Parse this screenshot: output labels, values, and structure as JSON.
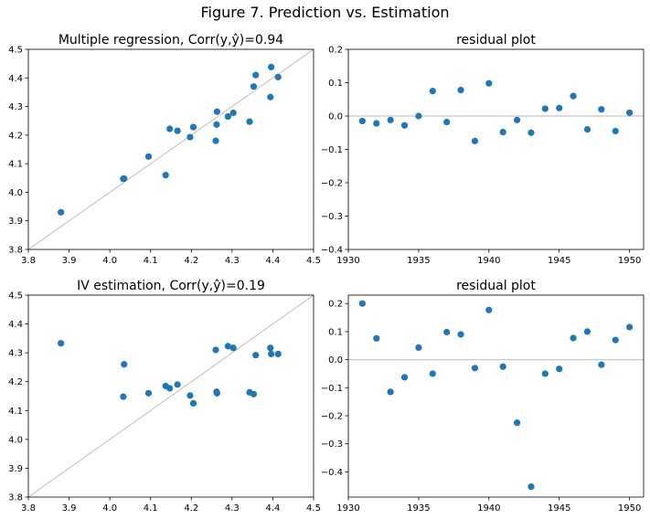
{
  "figure_title": "Figure 7. Prediction vs. Estimation",
  "chart_data": [
    {
      "type": "scatter",
      "title": "Multiple regression, Corr(y,ŷ)=0.94",
      "xlabel": "",
      "ylabel": "",
      "xlim": [
        3.8,
        4.5
      ],
      "ylim": [
        3.8,
        4.5
      ],
      "xticks": [
        "3.8",
        "3.9",
        "4.0",
        "4.1",
        "4.2",
        "4.3",
        "4.4",
        "4.5"
      ],
      "yticks": [
        "3.8",
        "3.9",
        "4.0",
        "4.1",
        "4.2",
        "4.3",
        "4.4",
        "4.5"
      ],
      "reference_line": "diagonal",
      "marker_color": "#1f77b4",
      "reference_color": "#b0b0b0",
      "points": [
        [
          3.88,
          3.93
        ],
        [
          4.033,
          4.047
        ],
        [
          4.035,
          4.048
        ],
        [
          4.095,
          4.125
        ],
        [
          4.137,
          4.06
        ],
        [
          4.147,
          4.222
        ],
        [
          4.166,
          4.215
        ],
        [
          4.197,
          4.193
        ],
        [
          4.205,
          4.228
        ],
        [
          4.26,
          4.18
        ],
        [
          4.262,
          4.237
        ],
        [
          4.263,
          4.282
        ],
        [
          4.29,
          4.265
        ],
        [
          4.303,
          4.278
        ],
        [
          4.343,
          4.247
        ],
        [
          4.353,
          4.37
        ],
        [
          4.358,
          4.41
        ],
        [
          4.394,
          4.333
        ],
        [
          4.396,
          4.438
        ],
        [
          4.413,
          4.403
        ]
      ]
    },
    {
      "type": "scatter",
      "title": "residual plot",
      "xlabel": "",
      "ylabel": "",
      "xlim": [
        1930,
        1951
      ],
      "ylim": [
        -0.4,
        0.2
      ],
      "xticks": [
        "1930",
        "1935",
        "1940",
        "1945",
        "1950"
      ],
      "yticks": [
        "0.2",
        "0.1",
        "0.0",
        "−0.1",
        "−0.2",
        "−0.3",
        "−0.4"
      ],
      "reference_line": "zero",
      "marker_color": "#1f77b4",
      "reference_color": "#c8c8c8",
      "points": [
        [
          1931,
          -0.015
        ],
        [
          1932,
          -0.022
        ],
        [
          1933,
          -0.012
        ],
        [
          1934,
          -0.028
        ],
        [
          1935,
          0.0
        ],
        [
          1936,
          0.075
        ],
        [
          1937,
          -0.018
        ],
        [
          1938,
          0.078
        ],
        [
          1939,
          -0.075
        ],
        [
          1940,
          0.098
        ],
        [
          1941,
          -0.048
        ],
        [
          1942,
          -0.012
        ],
        [
          1943,
          -0.05
        ],
        [
          1944,
          0.022
        ],
        [
          1945,
          0.024
        ],
        [
          1946,
          0.06
        ],
        [
          1947,
          -0.04
        ],
        [
          1948,
          0.02
        ],
        [
          1949,
          -0.045
        ],
        [
          1950,
          0.01
        ]
      ]
    },
    {
      "type": "scatter",
      "title": "IV estimation, Corr(y,ŷ)=0.19",
      "xlabel": "",
      "ylabel": "",
      "xlim": [
        3.8,
        4.5
      ],
      "ylim": [
        3.8,
        4.5
      ],
      "xticks": [
        "3.8",
        "3.9",
        "4.0",
        "4.1",
        "4.2",
        "4.3",
        "4.4",
        "4.5"
      ],
      "yticks": [
        "3.8",
        "3.9",
        "4.0",
        "4.1",
        "4.2",
        "4.3",
        "4.4",
        "4.5"
      ],
      "reference_line": "diagonal",
      "marker_color": "#1f77b4",
      "reference_color": "#b0b0b0",
      "points": [
        [
          3.88,
          4.333
        ],
        [
          4.033,
          4.148
        ],
        [
          4.035,
          4.26
        ],
        [
          4.095,
          4.16
        ],
        [
          4.137,
          4.185
        ],
        [
          4.147,
          4.177
        ],
        [
          4.166,
          4.19
        ],
        [
          4.197,
          4.152
        ],
        [
          4.205,
          4.125
        ],
        [
          4.26,
          4.31
        ],
        [
          4.262,
          4.165
        ],
        [
          4.263,
          4.16
        ],
        [
          4.29,
          4.323
        ],
        [
          4.303,
          4.317
        ],
        [
          4.343,
          4.163
        ],
        [
          4.353,
          4.157
        ],
        [
          4.358,
          4.292
        ],
        [
          4.394,
          4.317
        ],
        [
          4.396,
          4.296
        ],
        [
          4.413,
          4.296
        ]
      ]
    },
    {
      "type": "scatter",
      "title": "residual plot",
      "xlabel": "",
      "ylabel": "",
      "xlim": [
        1930,
        1951
      ],
      "ylim": [
        -0.49,
        0.23
      ],
      "xticks": [
        "1930",
        "1935",
        "1940",
        "1945",
        "1950"
      ],
      "yticks": [
        "0.2",
        "0.1",
        "0.0",
        "−0.1",
        "−0.2",
        "−0.3",
        "−0.4"
      ],
      "reference_line": "zero",
      "marker_color": "#1f77b4",
      "reference_color": "#c8c8c8",
      "points": [
        [
          1931,
          0.2
        ],
        [
          1932,
          0.076
        ],
        [
          1933,
          -0.115
        ],
        [
          1934,
          -0.063
        ],
        [
          1935,
          0.043
        ],
        [
          1936,
          -0.05
        ],
        [
          1937,
          0.098
        ],
        [
          1938,
          0.09
        ],
        [
          1939,
          -0.03
        ],
        [
          1940,
          0.177
        ],
        [
          1941,
          -0.025
        ],
        [
          1942,
          -0.225
        ],
        [
          1943,
          -0.453
        ],
        [
          1944,
          -0.05
        ],
        [
          1945,
          -0.033
        ],
        [
          1946,
          0.077
        ],
        [
          1947,
          0.1
        ],
        [
          1948,
          -0.018
        ],
        [
          1949,
          0.07
        ],
        [
          1950,
          0.116
        ]
      ]
    }
  ]
}
